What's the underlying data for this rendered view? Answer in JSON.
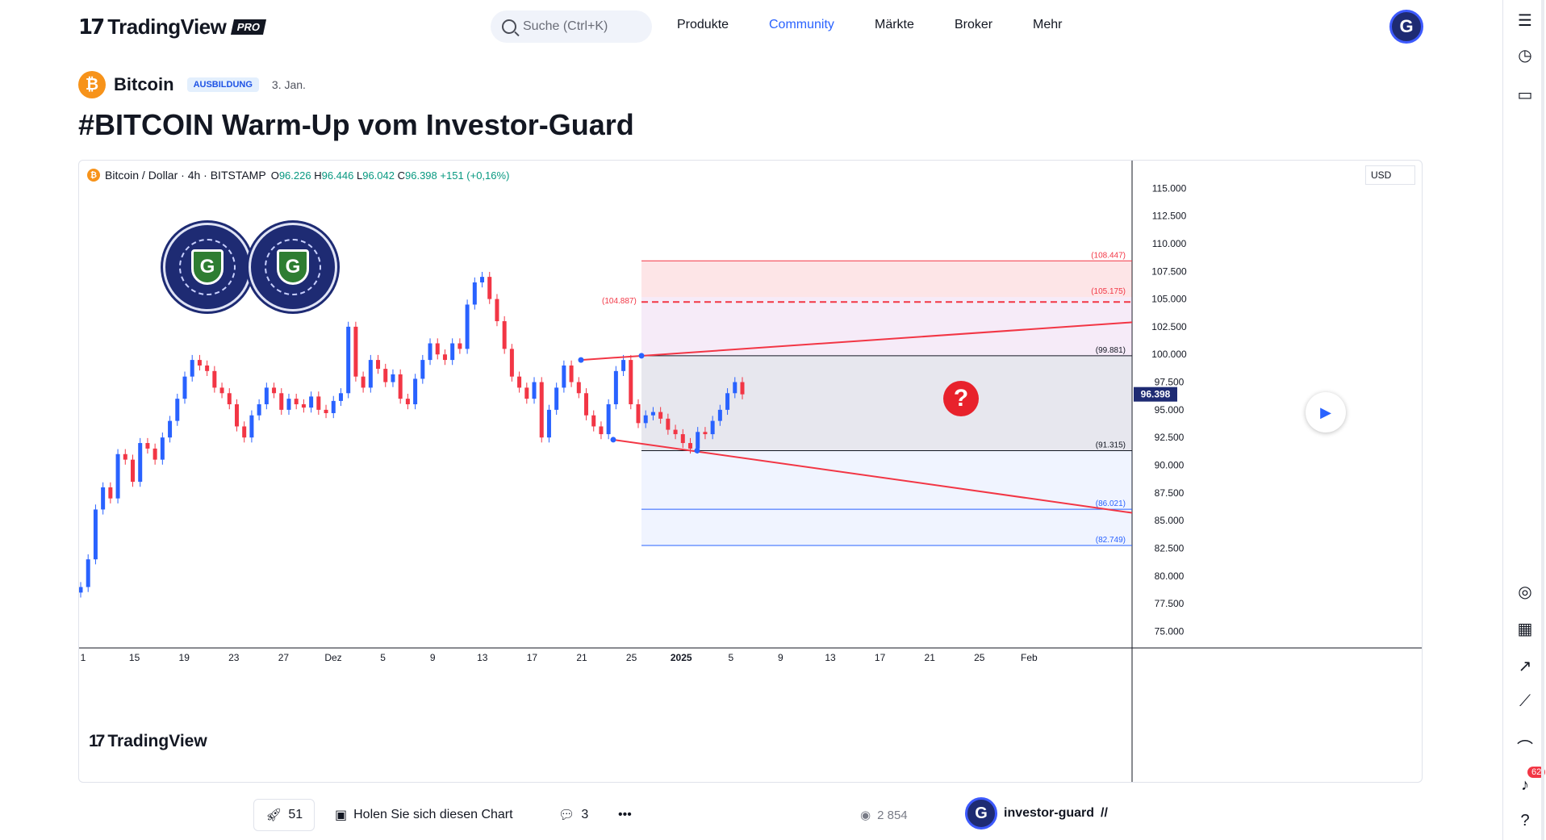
{
  "nav": {
    "logo_text": "TradingView",
    "logo_badge": "PRO",
    "search_placeholder": "Suche (Ctrl+K)",
    "items": [
      "Produkte",
      "Community",
      "Märkte",
      "Broker",
      "Mehr"
    ],
    "active_item": "Community",
    "avatar_letter": "G"
  },
  "idea": {
    "symbol": "Bitcoin",
    "category_badge": "AUSBILDUNG",
    "date": "3. Jan.",
    "title": "#BITCOIN Warm-Up vom Investor-Guard"
  },
  "chart": {
    "legend_name": "Bitcoin / Dollar · 4h · BITSTAMP",
    "open_label": "O",
    "open": "96.226",
    "high_label": "H",
    "high": "96.446",
    "low_label": "L",
    "low": "96.042",
    "close_label": "C",
    "close": "96.398",
    "change": "+151 (+0,16%)",
    "currency": "USD",
    "watermark": "TradingView",
    "seal_letter": "G",
    "question_mark": "?"
  },
  "chart_data": {
    "type": "line",
    "title": "",
    "xlabel": "",
    "ylabel": "",
    "x_ticks": [
      "1",
      "15",
      "19",
      "23",
      "27",
      "Dez",
      "5",
      "9",
      "13",
      "17",
      "21",
      "25",
      "2025",
      "5",
      "9",
      "13",
      "17",
      "21",
      "25",
      "Feb"
    ],
    "y_ticks": [
      "115.000",
      "112.500",
      "110.000",
      "107.500",
      "105.000",
      "102.500",
      "100.000",
      "97.500",
      "95.000",
      "92.500",
      "90.000",
      "87.500",
      "85.000",
      "82.500",
      "80.000",
      "77.500",
      "75.000"
    ],
    "ylim": [
      73500,
      117500
    ],
    "last_price": "96.398",
    "levels": [
      {
        "label": "(108.447)",
        "value": 108447,
        "color": "#f23645"
      },
      {
        "label": "(105.175)",
        "value": 105175,
        "color": "#f23645"
      },
      {
        "label": "(104.887)",
        "value": 104887,
        "color": "#f23645"
      },
      {
        "label": "(99.881)",
        "value": 99881,
        "color": "#131722"
      },
      {
        "label": "(91.315)",
        "value": 91315,
        "color": "#131722"
      },
      {
        "label": "(86.021)",
        "value": 86021,
        "color": "#2962ff"
      },
      {
        "label": "(82.749)",
        "value": 82749,
        "color": "#2962ff"
      }
    ],
    "series": [
      {
        "values": [
          79000,
          81500,
          86000,
          88000,
          87000,
          91000,
          90500,
          88500,
          92000,
          91500,
          90500,
          92500,
          94000,
          96000,
          98000,
          99500,
          99000,
          98500,
          97000,
          96500,
          95500,
          93500,
          92500,
          94500,
          95500,
          97000,
          96500,
          95000,
          96000,
          95500,
          95200,
          96200,
          95000,
          94700,
          95800,
          96500,
          102500,
          98000,
          97000,
          99500,
          98700,
          97500,
          98200,
          96000,
          95500,
          97800,
          99500,
          101000,
          100000,
          99500,
          101000,
          100500,
          104500,
          106500,
          107000,
          105000,
          103000,
          100500,
          98000,
          97000,
          96000,
          97500,
          92500,
          95000,
          97000,
          99000,
          97500,
          96500,
          94500,
          93500,
          92800,
          95500,
          98500,
          99500,
          95500,
          93800,
          94500,
          94800,
          94200,
          93200,
          92800,
          92000,
          91500,
          93000,
          92800,
          94000,
          95000,
          96500,
          97500,
          96398
        ],
        "color": "#131722"
      }
    ],
    "legend": "none"
  },
  "footer": {
    "boosts": "51",
    "get_chart": "Holen Sie sich diesen Chart",
    "comments": "3",
    "more": "•••",
    "views": "2 854",
    "author": "investor-guard",
    "author_avatar_letter": "G"
  },
  "sidebar": {
    "notification_count": "62"
  },
  "colors": {
    "accent": "#2962ff",
    "up": "#089981",
    "down": "#f23645",
    "bitcoin": "#f7931a"
  }
}
